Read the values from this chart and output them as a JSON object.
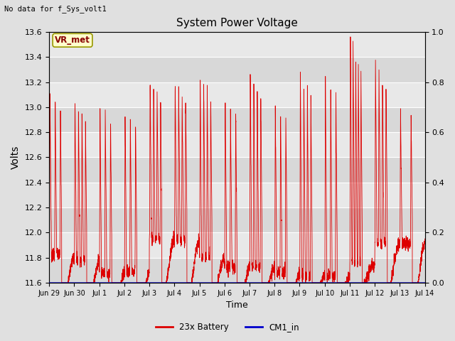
{
  "title": "System Power Voltage",
  "top_left_text": "No data for f_Sys_volt1",
  "ylabel": "Volts",
  "xlabel": "Time",
  "ylim_left": [
    11.6,
    13.6
  ],
  "ylim_right": [
    0.0,
    1.0
  ],
  "background_color": "#e0e0e0",
  "plot_bg_color": "#e8e8e8",
  "grid_color": "#ffffff",
  "annotation_label": "VR_met",
  "annotation_bg": "#ffffcc",
  "annotation_border": "#999900",
  "x_tick_labels": [
    "Jun 29",
    "Jun 30",
    "Jul 1",
    "Jul 2",
    "Jul 3",
    "Jul 4",
    "Jul 5",
    "Jul 6",
    "Jul 7",
    "Jul 8",
    "Jul 9",
    "Jul 10",
    "Jul 11",
    "Jul 12",
    "Jul 13",
    "Jul 14"
  ],
  "legend_entries": [
    "23x Battery",
    "CM1_in"
  ],
  "legend_colors": [
    "#dd0000",
    "#0000cc"
  ],
  "line_color_battery": "#dd0000",
  "line_color_cm1": "#0000cc",
  "right_yticks": [
    0.0,
    0.2,
    0.4,
    0.6,
    0.8,
    1.0
  ],
  "left_yticks": [
    11.6,
    11.8,
    12.0,
    12.2,
    12.4,
    12.6,
    12.8,
    13.0,
    13.2,
    13.4,
    13.6
  ]
}
